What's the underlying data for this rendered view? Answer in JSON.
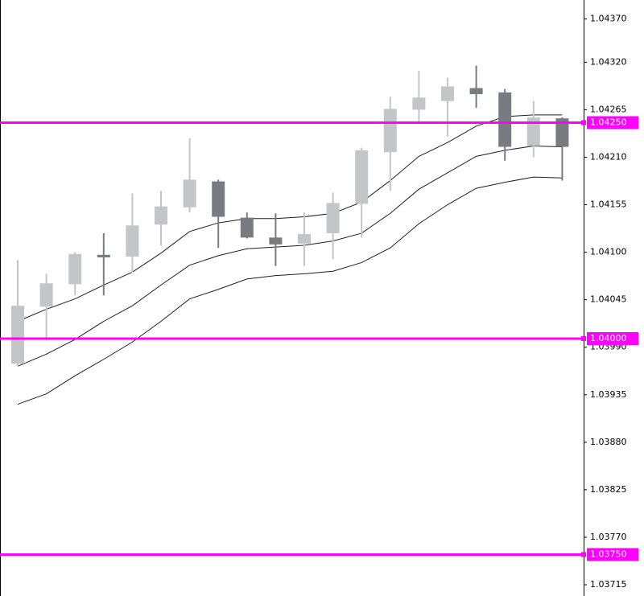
{
  "chart_data": {
    "type": "candlestick",
    "open": [
      1.03971,
      1.04037,
      1.04063,
      1.04097,
      1.04095,
      1.04132,
      1.04152,
      1.04182,
      1.0414,
      1.04117,
      1.0411,
      1.04122,
      1.04156,
      1.04216,
      1.04265,
      1.04275,
      1.0429,
      1.04285,
      1.04223,
      1.04255
    ],
    "high": [
      1.04091,
      1.04075,
      1.041,
      1.04122,
      1.04168,
      1.04171,
      1.04232,
      1.04184,
      1.04146,
      1.04145,
      1.04146,
      1.04169,
      1.04221,
      1.0428,
      1.0431,
      1.04302,
      1.04316,
      1.04289,
      1.04275,
      1.04256
    ],
    "low": [
      1.03968,
      1.03998,
      1.0405,
      1.0405,
      1.04076,
      1.04108,
      1.04146,
      1.04105,
      1.04116,
      1.04084,
      1.04084,
      1.04092,
      1.04117,
      1.04171,
      1.04251,
      1.04234,
      1.04267,
      1.04206,
      1.0421,
      1.04183
    ],
    "close": [
      1.04038,
      1.04064,
      1.04098,
      1.04094,
      1.04131,
      1.04153,
      1.04184,
      1.04141,
      1.04117,
      1.04109,
      1.04121,
      1.04157,
      1.04218,
      1.04266,
      1.04279,
      1.04292,
      1.04283,
      1.04222,
      1.04256,
      1.04222
    ],
    "up_color": "#c3c5c8",
    "down_color": "#787b80",
    "series": [
      {
        "color": "#1e1e1e",
        "values": [
          1.0402,
          1.04034,
          1.04046,
          1.04062,
          1.04077,
          1.04099,
          1.04124,
          1.04134,
          1.04139,
          1.04139,
          1.04141,
          1.04145,
          1.04158,
          1.04183,
          1.04211,
          1.04227,
          1.04246,
          1.04257,
          1.04259,
          1.04259
        ]
      },
      {
        "color": "#1e1e1e",
        "values": [
          1.03968,
          1.03982,
          1.03999,
          1.0402,
          1.04038,
          1.04062,
          1.04085,
          1.04096,
          1.04104,
          1.04106,
          1.04108,
          1.04113,
          1.04122,
          1.04145,
          1.04173,
          1.04192,
          1.04211,
          1.04218,
          1.04223,
          1.04222
        ]
      },
      {
        "color": "#1e1e1e",
        "values": [
          1.03924,
          1.03936,
          1.03957,
          1.03976,
          1.03996,
          1.0402,
          1.04046,
          1.04057,
          1.04069,
          1.04073,
          1.04075,
          1.04078,
          1.04088,
          1.04105,
          1.04133,
          1.04155,
          1.04174,
          1.04181,
          1.04187,
          1.04186
        ]
      }
    ],
    "levels": [
      {
        "value": 1.0425,
        "label": "1.04250"
      },
      {
        "value": 1.04,
        "label": "1.04000"
      },
      {
        "value": 1.0375,
        "label": "1.03750"
      }
    ],
    "level_color": "#ff00ff",
    "ylim": [
      1.03702,
      1.04392
    ],
    "yticks": [
      {
        "value": 1.0437,
        "label": "1.04370"
      },
      {
        "value": 1.0432,
        "label": "1.04320"
      },
      {
        "value": 1.04265,
        "label": "1.04265"
      },
      {
        "value": 1.0421,
        "label": "1.04210"
      },
      {
        "value": 1.04155,
        "label": "1.04155"
      },
      {
        "value": 1.041,
        "label": "1.04100"
      },
      {
        "value": 1.04045,
        "label": "1.04045"
      },
      {
        "value": 1.0399,
        "label": "1.03990"
      },
      {
        "value": 1.03935,
        "label": "1.03935"
      },
      {
        "value": 1.0388,
        "label": "1.03880"
      },
      {
        "value": 1.03825,
        "label": "1.03825"
      },
      {
        "value": 1.0377,
        "label": "1.03770"
      },
      {
        "value": 1.03715,
        "label": "1.03715"
      }
    ]
  }
}
